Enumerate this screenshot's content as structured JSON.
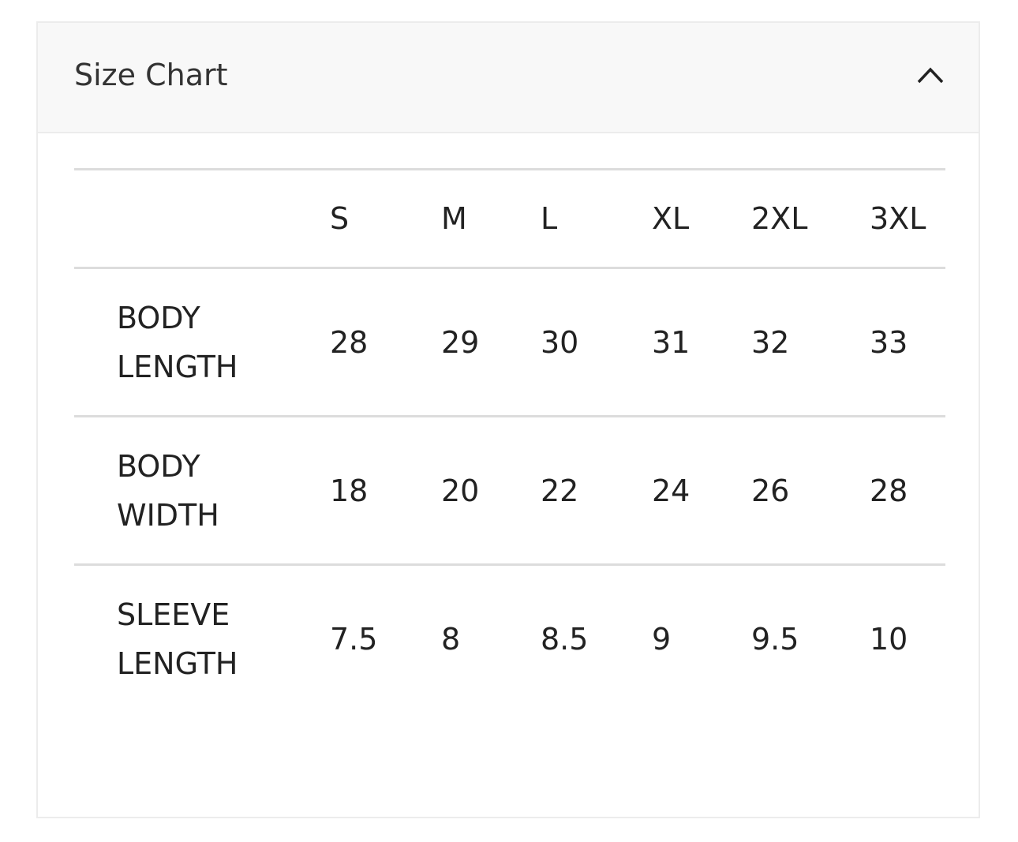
{
  "title": "Size Chart",
  "columns": [
    "",
    "S",
    "M",
    "L",
    "XL",
    "2XL",
    "3XL"
  ],
  "rows": [
    {
      "label_lines": [
        "BODY",
        "LENGTH"
      ],
      "values": [
        "28",
        "29",
        "30",
        "31",
        "32",
        "33"
      ]
    },
    {
      "label_lines": [
        "BODY",
        "WIDTH"
      ],
      "values": [
        "18",
        "20",
        "22",
        "24",
        "26",
        "28"
      ]
    },
    {
      "label_lines": [
        "SLEEVE",
        "LENGTH"
      ],
      "values": [
        "7.5",
        "8",
        "8.5",
        "9",
        "9.5",
        "10"
      ]
    }
  ]
}
